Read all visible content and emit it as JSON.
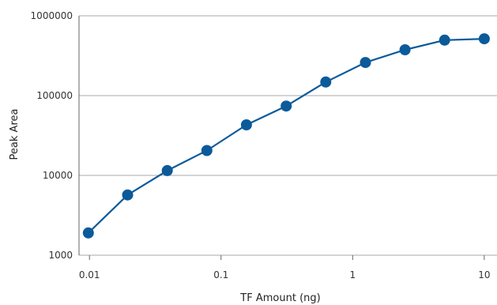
{
  "chart_data": {
    "type": "line",
    "title": "",
    "xlabel": "TF Amount (ng)",
    "ylabel": "Peak Area",
    "x_scale": "log",
    "y_scale": "log",
    "xlim": [
      0.00833,
      12.5
    ],
    "ylim": [
      1000,
      1000000
    ],
    "x_ticks": [
      0.01,
      0.1,
      1,
      10
    ],
    "x_tick_labels": [
      "0.01",
      "0.1",
      "1",
      "10"
    ],
    "y_ticks": [
      1000,
      10000,
      100000,
      1000000
    ],
    "y_tick_labels": [
      "1000",
      "10000",
      "100000",
      "1000000"
    ],
    "grid": {
      "horizontal": true,
      "vertical": false
    },
    "legend": "none",
    "series": [
      {
        "color": "#0b5a9a",
        "x": [
          0.0098,
          0.0195,
          0.039,
          0.078,
          0.156,
          0.3125,
          0.625,
          1.25,
          2.5,
          5,
          10
        ],
        "y": [
          1900,
          5700,
          11500,
          20500,
          43000,
          74000,
          148000,
          260000,
          375000,
          495000,
          515000
        ]
      }
    ]
  }
}
